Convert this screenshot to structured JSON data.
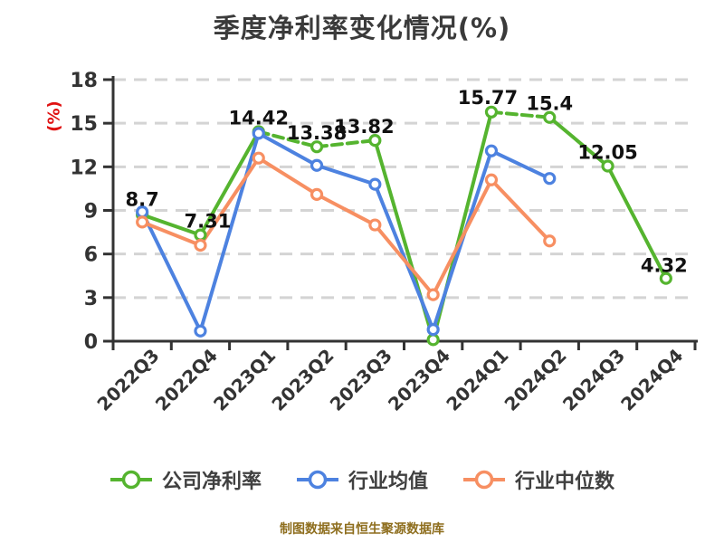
{
  "title": "季度净利率变化情况(%)",
  "y_axis_name": "(%)",
  "footer": "制图数据来自恒生聚源数据库",
  "colors": {
    "company": "#55b42f",
    "industry_avg": "#4d82e0",
    "industry_median": "#f78f62",
    "grid": "#d4d4d4",
    "axis": "#333333",
    "axis_text": "#333333",
    "data_label": "#111111",
    "title_text": "#3a3a3a",
    "axis_name_red": "#e01212",
    "footer_text": "#8e6e1e"
  },
  "chart_data": {
    "type": "line",
    "categories": [
      "2022Q3",
      "2022Q4",
      "2023Q1",
      "2023Q2",
      "2023Q3",
      "2023Q4",
      "2024Q1",
      "2024Q2",
      "2024Q3",
      "2024Q4"
    ],
    "y_ticks": [
      0,
      3,
      6,
      9,
      12,
      15,
      18
    ],
    "ylim": [
      0,
      18
    ],
    "grid": "dashed-horizontal",
    "legend_position": "bottom",
    "series": [
      {
        "name": "公司净利率",
        "key": "company-net-margin",
        "color_key": "company",
        "values": [
          8.7,
          7.31,
          14.42,
          13.38,
          13.82,
          0.1,
          15.77,
          15.4,
          12.05,
          4.32
        ],
        "labels": [
          "8.7",
          "7.31",
          "14.42",
          "13.38",
          "13.82",
          "",
          "15.77",
          "15.4",
          "12.05",
          "4.32"
        ],
        "label_offsets": [
          [
            0,
            -10
          ],
          [
            8,
            -8
          ],
          [
            0,
            -8
          ],
          [
            0,
            -8
          ],
          [
            -12,
            -8
          ],
          [
            0,
            0
          ],
          [
            -4,
            -9
          ],
          [
            0,
            -8
          ],
          [
            0,
            -8
          ],
          [
            -2,
            -7
          ]
        ],
        "dashed_segments": [
          [
            2,
            3
          ],
          [
            3,
            4
          ],
          [
            6,
            7
          ]
        ]
      },
      {
        "name": "行业均值",
        "key": "industry-average",
        "color_key": "industry_avg",
        "values": [
          8.9,
          0.7,
          14.3,
          12.1,
          10.8,
          0.8,
          13.1,
          11.2,
          null,
          null
        ],
        "labels": [],
        "label_offsets": [],
        "dashed_segments": []
      },
      {
        "name": "行业中位数",
        "key": "industry-median",
        "color_key": "industry_median",
        "values": [
          8.2,
          6.6,
          12.6,
          10.1,
          8.0,
          3.2,
          11.1,
          6.9,
          null,
          null
        ],
        "labels": [],
        "label_offsets": [],
        "dashed_segments": []
      }
    ]
  },
  "legend": {
    "items": [
      {
        "key": "company-net-margin",
        "label": "公司净利率",
        "color_key": "company"
      },
      {
        "key": "industry-average",
        "label": "行业均值",
        "color_key": "industry_avg"
      },
      {
        "key": "industry-median",
        "label": "行业中位数",
        "color_key": "industry_median"
      }
    ]
  }
}
